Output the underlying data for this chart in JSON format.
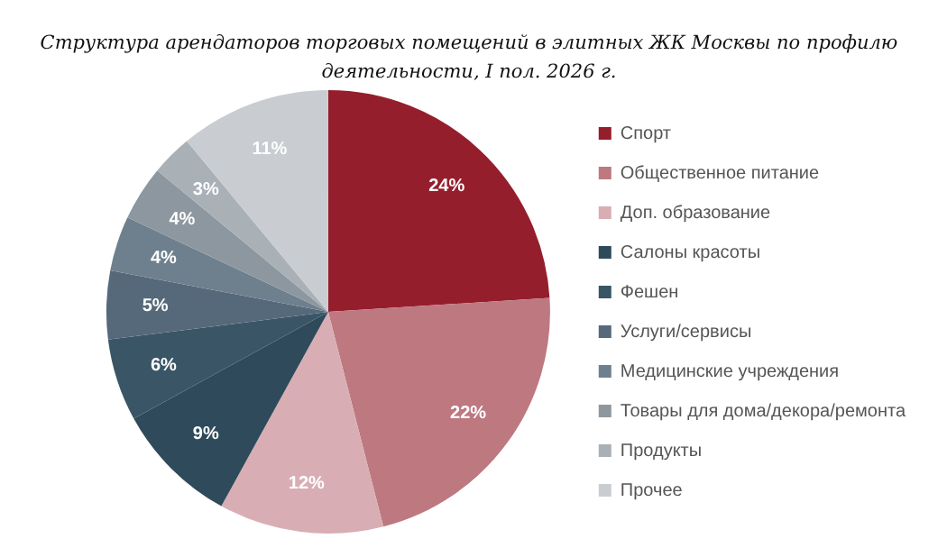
{
  "chart_data": {
    "type": "pie",
    "title": "Структура арендаторов торговых помещений в элитных ЖК Москвы по профилю деятельности, I пол. 2026 г.",
    "categories": [
      "Спорт",
      "Общественное питание",
      "Доп. образование",
      "Салоны красоты",
      "Фешен",
      "Услуги/сервисы",
      "Медицинские учреждения",
      "Товары для дома/декора/ремонта",
      "Продукты",
      "Прочее"
    ],
    "values": [
      24,
      22,
      12,
      9,
      6,
      5,
      4,
      4,
      3,
      11
    ],
    "value_labels": [
      "24%",
      "22%",
      "12%",
      "9%",
      "6%",
      "5%",
      "4%",
      "4%",
      "3%",
      "11%"
    ],
    "colors": [
      "#951e2c",
      "#bd7880",
      "#d8aeb4",
      "#2f4a5a",
      "#3a5566",
      "#56697a",
      "#6e808d",
      "#8d979f",
      "#a9b0b6",
      "#c9cdd1"
    ],
    "legend": "right"
  }
}
